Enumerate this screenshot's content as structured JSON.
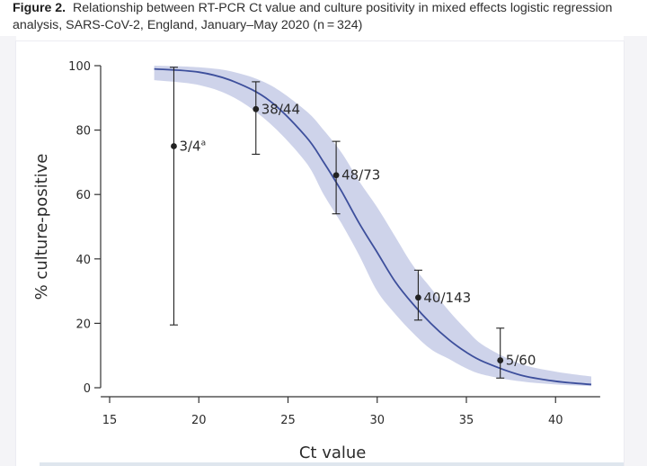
{
  "figure": {
    "label": "Figure 2.",
    "caption": "Relationship between RT-PCR Ct value and culture positivity in mixed effects logistic regression analysis, SARS-CoV-2, England, January–May 2020 (n = 324)"
  },
  "chart_data": {
    "type": "line",
    "title": "",
    "xlabel": "Ct value",
    "ylabel": "% culture-positive",
    "xlim": [
      14.5,
      42.5
    ],
    "ylim": [
      0,
      100
    ],
    "x_ticks": [
      15,
      20,
      25,
      30,
      35,
      40
    ],
    "y_ticks": [
      0,
      20,
      40,
      60,
      80,
      100
    ],
    "grid": false,
    "colors": {
      "curve": "#3d4f9c",
      "band": "#c6cbe6",
      "points": "#222222"
    },
    "series": [
      {
        "type": "line",
        "x": [
          17.5,
          20,
          22,
          24,
          26,
          27,
          28,
          29,
          30,
          31,
          32,
          33,
          34,
          35,
          36,
          38,
          40,
          42
        ],
        "y": [
          99,
          98,
          95,
          89,
          78,
          70,
          61,
          51,
          42,
          33,
          26,
          20,
          15,
          11,
          8,
          4,
          2,
          1
        ]
      },
      {
        "type": "area",
        "x": [
          17.5,
          20,
          22,
          24,
          26,
          27,
          28,
          29,
          30,
          31,
          32,
          33,
          34,
          35,
          36,
          38,
          40,
          42
        ],
        "lower": [
          95.5,
          94,
          90,
          82,
          70,
          60,
          51,
          41,
          30,
          23,
          17,
          12,
          9,
          6,
          4,
          2,
          1,
          0.5
        ],
        "upper": [
          100,
          99.5,
          98,
          94,
          86,
          80,
          73,
          64,
          56,
          47,
          38,
          31,
          24,
          18,
          13,
          7.5,
          5,
          3.5
        ]
      },
      {
        "type": "errorbar",
        "points": [
          {
            "x": 18.6,
            "y": 75,
            "lo": 19.5,
            "hi": 99.5,
            "label": "3/4",
            "sup": "a"
          },
          {
            "x": 23.2,
            "y": 86.5,
            "lo": 72.5,
            "hi": 95,
            "label": "38/44",
            "sup": ""
          },
          {
            "x": 27.7,
            "y": 66,
            "lo": 54,
            "hi": 76.5,
            "label": "48/73",
            "sup": ""
          },
          {
            "x": 32.3,
            "y": 28,
            "lo": 21,
            "hi": 36.5,
            "label": "40/143",
            "sup": ""
          },
          {
            "x": 36.9,
            "y": 8.5,
            "lo": 3,
            "hi": 18.5,
            "label": "5/60",
            "sup": ""
          }
        ]
      }
    ]
  }
}
